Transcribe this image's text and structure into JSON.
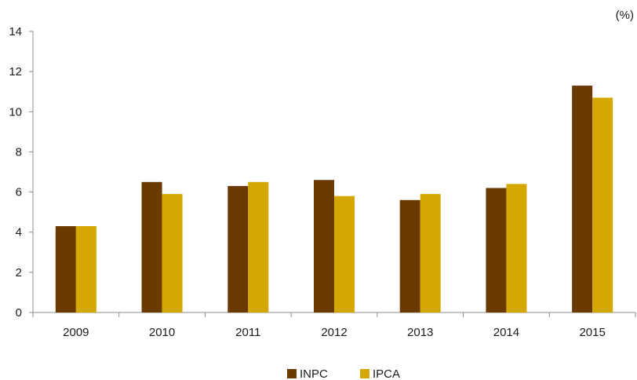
{
  "chart_data": {
    "type": "bar",
    "unit_label": "(%)",
    "categories": [
      "2009",
      "2010",
      "2011",
      "2012",
      "2013",
      "2014",
      "2015"
    ],
    "series": [
      {
        "name": "INPC",
        "color": "#6b3a00",
        "values": [
          4.3,
          6.5,
          6.3,
          6.6,
          5.6,
          6.2,
          11.3
        ]
      },
      {
        "name": "IPCA",
        "color": "#d4a800",
        "values": [
          4.3,
          5.9,
          6.5,
          5.8,
          5.9,
          6.4,
          10.7
        ]
      }
    ],
    "ylim": [
      0,
      14
    ],
    "yticks": [
      0,
      2,
      4,
      6,
      8,
      10,
      12,
      14
    ],
    "grid": false,
    "legend_position": "bottom-center"
  }
}
